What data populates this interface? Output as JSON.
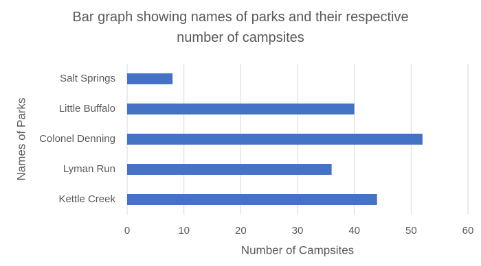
{
  "chart_data": {
    "type": "bar",
    "orientation": "horizontal",
    "title": "Bar graph showing names of parks and their respective number of campsites",
    "x_label": "Number of Campsites",
    "y_label": "Names of Parks",
    "categories": [
      "Salt Springs",
      "Little Buffalo",
      "Colonel Denning",
      "Lyman Run",
      "Kettle Creek"
    ],
    "values": [
      8,
      40,
      52,
      36,
      44
    ],
    "color": "#4472c4",
    "xlim": [
      0,
      60
    ],
    "xticks": [
      0,
      10,
      20,
      30,
      40,
      50,
      60
    ],
    "grid": true
  }
}
